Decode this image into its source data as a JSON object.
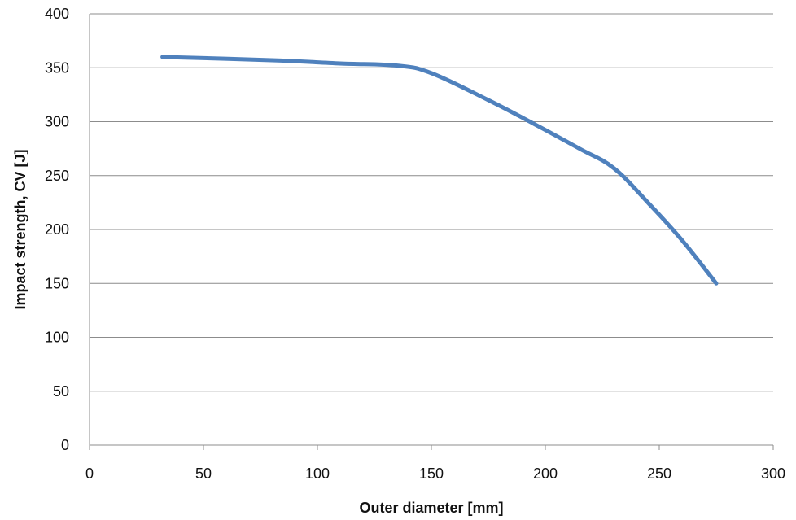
{
  "chart_data": {
    "type": "line",
    "title": "",
    "xlabel": "Outer diameter [mm]",
    "ylabel": "Impact strength, CV [J]",
    "xlim": [
      0,
      300
    ],
    "ylim": [
      0,
      400
    ],
    "xticks": [
      0,
      50,
      100,
      150,
      200,
      250,
      300
    ],
    "yticks": [
      0,
      50,
      100,
      150,
      200,
      250,
      300,
      350,
      400
    ],
    "grid": "horizontal",
    "legend": "none",
    "series": [
      {
        "color": "#4f81bd",
        "x": [
          32,
          80,
          110,
          135,
          150,
          175,
          195,
          215,
          230,
          245,
          260,
          275
        ],
        "y": [
          360,
          357,
          354,
          352,
          345,
          320,
          298,
          275,
          257,
          225,
          190,
          150
        ]
      }
    ],
    "colors": {
      "line": "#4f81bd",
      "grid": "#8c8c8c",
      "axis": "#8c8c8c",
      "text": "#111111"
    }
  }
}
